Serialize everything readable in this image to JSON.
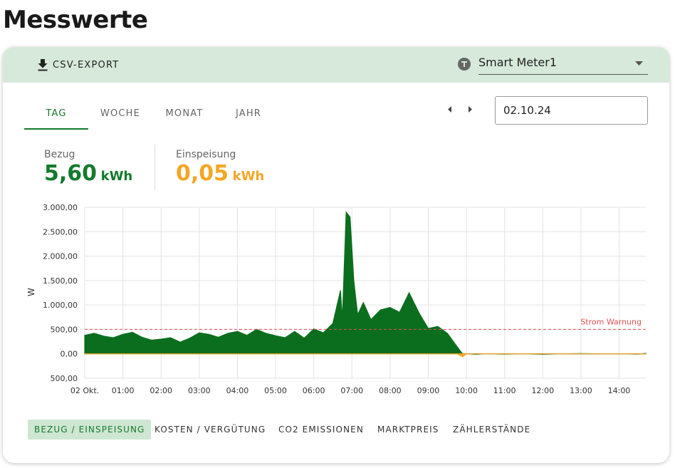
{
  "header": {
    "title": "Messwerte"
  },
  "toolbar": {
    "export": "CSV-EXPORT",
    "meter": "Smart Meter1"
  },
  "tabs": {
    "items": [
      "TAG",
      "WOCHE",
      "MONAT",
      "JAHR"
    ],
    "active": 0
  },
  "date": "02.10.24",
  "summary": {
    "bezug": {
      "label": "Bezug",
      "value": "5,60",
      "unit": "kWh"
    },
    "einspeisung": {
      "label": "Einspeisung",
      "value": "0,05",
      "unit": "kWh"
    }
  },
  "chart_data": {
    "type": "area",
    "y_label": "W",
    "x": [
      0,
      0.25,
      0.5,
      0.75,
      1,
      1.25,
      1.5,
      1.75,
      2,
      2.25,
      2.5,
      2.75,
      3,
      3.25,
      3.5,
      3.75,
      4,
      4.25,
      4.5,
      4.75,
      5,
      5.25,
      5.5,
      5.75,
      6,
      6.25,
      6.5,
      6.7,
      6.75,
      6.85,
      6.95,
      7.05,
      7.15,
      7.3,
      7.5,
      7.75,
      8,
      8.25,
      8.5,
      8.75,
      9,
      9.25,
      9.5,
      9.75,
      9.9,
      10,
      10.25,
      10.5,
      11,
      11.5,
      12,
      12.5,
      13,
      13.5,
      14,
      14.5,
      14.7
    ],
    "series": [
      {
        "color": "#0b6e1f",
        "values": [
          380,
          420,
          360,
          330,
          400,
          440,
          340,
          280,
          300,
          330,
          240,
          320,
          430,
          400,
          340,
          420,
          460,
          380,
          500,
          420,
          370,
          330,
          460,
          320,
          510,
          430,
          620,
          1300,
          700,
          2900,
          2800,
          1500,
          800,
          1050,
          700,
          900,
          950,
          850,
          1250,
          850,
          520,
          560,
          420,
          150,
          0,
          0,
          -10,
          0,
          -5,
          0,
          -10,
          0,
          5,
          0,
          0,
          -5,
          10
        ]
      },
      {
        "color": "#f5a623",
        "values": [
          0,
          0,
          0,
          0,
          0,
          0,
          0,
          0,
          0,
          0,
          0,
          0,
          0,
          0,
          0,
          0,
          0,
          0,
          0,
          0,
          0,
          0,
          0,
          0,
          0,
          0,
          0,
          0,
          0,
          0,
          0,
          0,
          0,
          0,
          0,
          0,
          0,
          0,
          0,
          0,
          0,
          0,
          0,
          0,
          -60,
          0,
          0,
          0,
          0,
          0,
          0,
          0,
          0,
          0,
          0,
          0,
          0
        ]
      }
    ],
    "xlim": [
      0,
      14.7
    ],
    "xticks": [
      {
        "value": 0,
        "label": "02 Okt."
      },
      {
        "value": 1,
        "label": "01:00"
      },
      {
        "value": 2,
        "label": "02:00"
      },
      {
        "value": 3,
        "label": "03:00"
      },
      {
        "value": 4,
        "label": "04:00"
      },
      {
        "value": 5,
        "label": "05:00"
      },
      {
        "value": 6,
        "label": "06:00"
      },
      {
        "value": 7,
        "label": "07:00"
      },
      {
        "value": 8,
        "label": "08:00"
      },
      {
        "value": 9,
        "label": "09:00"
      },
      {
        "value": 10,
        "label": "10:00"
      },
      {
        "value": 11,
        "label": "11:00"
      },
      {
        "value": 12,
        "label": "12:00"
      },
      {
        "value": 13,
        "label": "13:00"
      },
      {
        "value": 14,
        "label": "14:00"
      }
    ],
    "ylim": [
      -500,
      3000
    ],
    "yticks": [
      {
        "value": -500,
        "label": "500,00"
      },
      {
        "value": 0,
        "label": "0,00"
      },
      {
        "value": 500,
        "label": "500,00"
      },
      {
        "value": 1000,
        "label": "1.000,00"
      },
      {
        "value": 1500,
        "label": "1.500,00"
      },
      {
        "value": 2000,
        "label": "2.000,00"
      },
      {
        "value": 2500,
        "label": "2.500,00"
      },
      {
        "value": 3000,
        "label": "3.000,00"
      }
    ],
    "grid": true,
    "threshold": {
      "label": "Strom Warnung",
      "value": 500,
      "color": "#e05050"
    }
  },
  "chips": {
    "items": [
      "BEZUG / EINSPEISUNG",
      "KOSTEN / VERGÜTUNG",
      "CO2 EMISSIONEN",
      "MARKTPREIS",
      "ZÄHLERSTÄNDE"
    ],
    "active": 0
  }
}
